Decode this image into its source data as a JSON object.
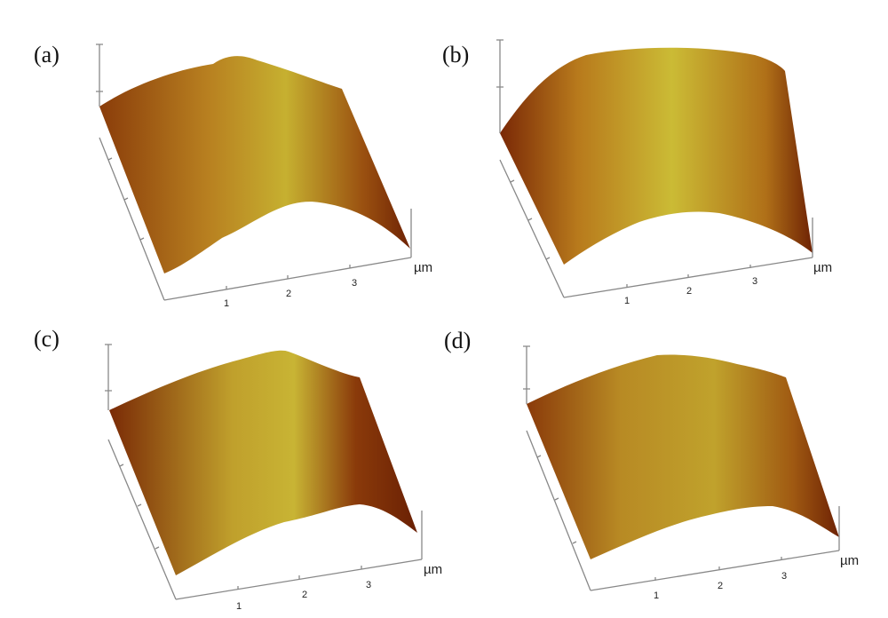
{
  "figure": {
    "panels": [
      {
        "label": "(a)",
        "ticks": [
          "1",
          "2",
          "3"
        ],
        "unit": "µm"
      },
      {
        "label": "(b)",
        "ticks": [
          "1",
          "2",
          "3"
        ],
        "unit": "µm"
      },
      {
        "label": "(c)",
        "ticks": [
          "1",
          "2",
          "3"
        ],
        "unit": "µm"
      },
      {
        "label": "(d)",
        "ticks": [
          "1",
          "2",
          "3"
        ],
        "unit": "µm"
      }
    ],
    "colors": {
      "dark": "#7a2a06",
      "mid": "#b5731a",
      "light": "#c9b532"
    }
  }
}
